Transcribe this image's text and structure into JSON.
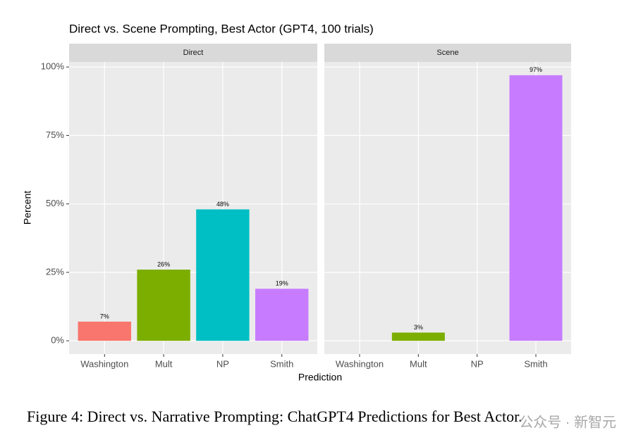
{
  "title": "Direct vs. Scene Prompting, Best Actor (GPT4, 100 trials)",
  "xlabel": "Prediction",
  "ylabel": "Percent",
  "caption": "Figure 4: Direct vs. Narrative Prompting: ChatGPT4 Predictions for Best Actor.",
  "watermark": "公众号 · 新智元",
  "chart_data": [
    {
      "type": "bar",
      "title": "Direct",
      "categories": [
        "Washington",
        "Mult",
        "NP",
        "Smith"
      ],
      "values": [
        7,
        26,
        48,
        19
      ],
      "value_labels": [
        "7%",
        "26%",
        "48%",
        "19%"
      ],
      "colors": [
        "#f8766d",
        "#7cae00",
        "#00bfc4",
        "#c77cff"
      ],
      "ylim": [
        -4.85,
        101.85
      ],
      "yticks": [
        {
          "value": 0,
          "label": "0%"
        },
        {
          "value": 25,
          "label": "25%"
        },
        {
          "value": 50,
          "label": "50%"
        },
        {
          "value": 75,
          "label": "75%"
        },
        {
          "value": 100,
          "label": "100%"
        }
      ],
      "grid": true
    },
    {
      "type": "bar",
      "title": "Scene",
      "categories": [
        "Washington",
        "Mult",
        "NP",
        "Smith"
      ],
      "values": [
        0,
        3,
        0,
        97
      ],
      "value_labels": [
        null,
        "3%",
        null,
        "97%"
      ],
      "colors": [
        "#f8766d",
        "#7cae00",
        "#00bfc4",
        "#c77cff"
      ],
      "ylim": [
        -4.85,
        101.85
      ],
      "yticks": [
        {
          "value": 0,
          "label": "0%"
        },
        {
          "value": 25,
          "label": "25%"
        },
        {
          "value": 50,
          "label": "50%"
        },
        {
          "value": 75,
          "label": "75%"
        },
        {
          "value": 100,
          "label": "100%"
        }
      ],
      "grid": true
    }
  ]
}
